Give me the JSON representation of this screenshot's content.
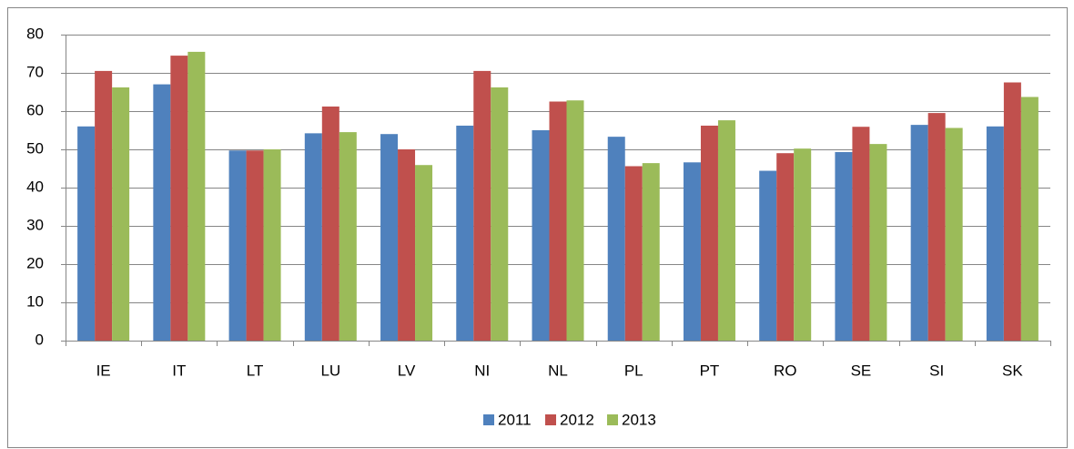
{
  "chart_data": {
    "type": "bar",
    "categories": [
      "IE",
      "IT",
      "LT",
      "LU",
      "LV",
      "NI",
      "NL",
      "PL",
      "PT",
      "RO",
      "SE",
      "SI",
      "SK"
    ],
    "series": [
      {
        "name": "2011",
        "color": "#4f81bd",
        "values": [
          56,
          67,
          49.7,
          54.2,
          54,
          56.2,
          55,
          53.3,
          46.6,
          44.4,
          49.3,
          56.4,
          56
        ]
      },
      {
        "name": "2012",
        "color": "#c0504d",
        "values": [
          70.5,
          74.5,
          49.7,
          61.2,
          50,
          70.5,
          62.5,
          45.6,
          56.2,
          49,
          55.9,
          59.5,
          67.5
        ]
      },
      {
        "name": "2013",
        "color": "#9bbb59",
        "values": [
          66.2,
          75.5,
          50,
          54.5,
          45.9,
          66.2,
          62.8,
          46.4,
          57.6,
          50.2,
          51.4,
          55.6,
          63.7
        ]
      }
    ],
    "ylim": [
      0,
      80
    ],
    "yticks": [
      0,
      10,
      20,
      30,
      40,
      50,
      60,
      70,
      80
    ],
    "grid": true,
    "legend": "bottom"
  }
}
